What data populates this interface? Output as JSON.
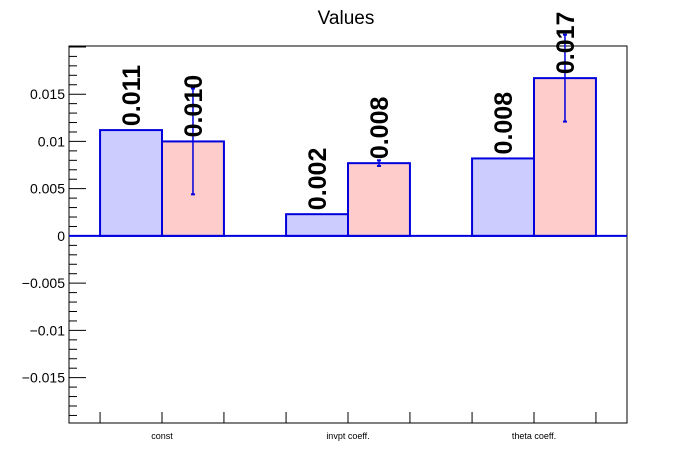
{
  "chart_data": {
    "type": "bar",
    "title": "Values",
    "categories": [
      "const",
      "invpt coeff.",
      "theta coeff."
    ],
    "series": [
      {
        "values": [
          0.0112,
          0.0023,
          0.0082
        ],
        "labels": [
          "0.011",
          "0.002",
          "0.008"
        ],
        "errors": [
          0,
          0,
          0
        ]
      },
      {
        "values": [
          0.01,
          0.0077,
          0.0167
        ],
        "labels": [
          "0.010",
          "0.008",
          "0.017"
        ],
        "errors": [
          0.0056,
          0.0003,
          0.0046
        ]
      }
    ],
    "ylim": [
      -0.0198,
      0.0201
    ],
    "yticks": [
      -0.015,
      -0.01,
      -0.005,
      0,
      0.005,
      0.01,
      0.015
    ],
    "ytick_labels": [
      "−0.015",
      "−0.01",
      "−0.005",
      "0",
      "0.005",
      "0.01",
      "0.015"
    ],
    "grid": false,
    "colors": {
      "series_fill": [
        "#ccccff",
        "#ffcccc"
      ],
      "bar_outline": "#0000dd",
      "error_bar": "#0000dd",
      "axis": "#000000"
    }
  }
}
